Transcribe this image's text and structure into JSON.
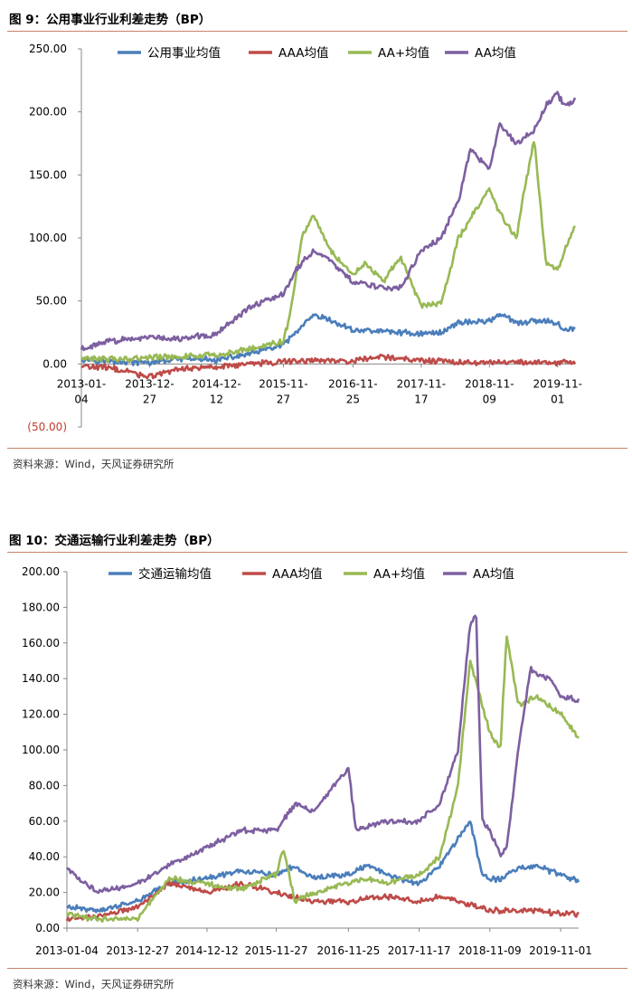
{
  "figures": [
    {
      "title": "图 9：公用事业行业利差走势（BP）",
      "source": "资料来源：Wind，天风证券研究所",
      "chart_data": {
        "type": "line",
        "ylim": [
          -50,
          250
        ],
        "yticks": [
          -50,
          0,
          50,
          100,
          150,
          200,
          250
        ],
        "ytick_labels": [
          "(50.00)",
          "0.00",
          "50.00",
          "100.00",
          "150.00",
          "200.00",
          "250.00"
        ],
        "x_start": "2013-01-04",
        "x_end": "2020-01-31",
        "xtick_labels": [
          "2013-01-04",
          "2013-12-27",
          "2014-12-12",
          "2015-11-27",
          "2016-11-25",
          "2017-11-17",
          "2018-11-09",
          "2019-11-01"
        ],
        "legend_position": "top",
        "grid": false,
        "series": [
          {
            "name": "公用事业均值",
            "color": "#4a7ebb",
            "points": [
              [
                "2013-01-04",
                4
              ],
              [
                "2013-06-01",
                2
              ],
              [
                "2013-12-27",
                1
              ],
              [
                "2014-06-01",
                4
              ],
              [
                "2014-12-12",
                3
              ],
              [
                "2015-06-01",
                8
              ],
              [
                "2015-11-27",
                15
              ],
              [
                "2016-02-01",
                25
              ],
              [
                "2016-05-01",
                38
              ],
              [
                "2016-07-01",
                36
              ],
              [
                "2016-11-25",
                27
              ],
              [
                "2017-05-01",
                26
              ],
              [
                "2017-11-17",
                24
              ],
              [
                "2018-03-01",
                25
              ],
              [
                "2018-06-01",
                33
              ],
              [
                "2018-11-09",
                34
              ],
              [
                "2019-01-01",
                40
              ],
              [
                "2019-04-01",
                32
              ],
              [
                "2019-07-01",
                34
              ],
              [
                "2019-11-01",
                33
              ],
              [
                "2019-12-01",
                27
              ],
              [
                "2020-01-31",
                28
              ]
            ]
          },
          {
            "name": "AAA均值",
            "color": "#be4b48",
            "points": [
              [
                "2013-01-04",
                -2
              ],
              [
                "2013-06-01",
                -3
              ],
              [
                "2013-12-27",
                -10
              ],
              [
                "2014-06-01",
                -4
              ],
              [
                "2014-12-12",
                -2
              ],
              [
                "2015-06-01",
                0
              ],
              [
                "2015-11-27",
                2
              ],
              [
                "2016-06-01",
                3
              ],
              [
                "2016-11-25",
                2
              ],
              [
                "2017-05-01",
                6
              ],
              [
                "2017-11-17",
                3
              ],
              [
                "2018-06-01",
                1
              ],
              [
                "2018-11-09",
                1
              ],
              [
                "2019-06-01",
                1
              ],
              [
                "2019-11-01",
                1
              ],
              [
                "2020-01-31",
                2
              ]
            ]
          },
          {
            "name": "AA+均值",
            "color": "#98b954",
            "points": [
              [
                "2013-01-04",
                4
              ],
              [
                "2013-06-01",
                4
              ],
              [
                "2013-12-27",
                5
              ],
              [
                "2014-06-01",
                6
              ],
              [
                "2014-12-12",
                7
              ],
              [
                "2015-06-01",
                12
              ],
              [
                "2015-11-27",
                18
              ],
              [
                "2016-01-01",
                40
              ],
              [
                "2016-03-01",
                100
              ],
              [
                "2016-05-01",
                118
              ],
              [
                "2016-08-01",
                90
              ],
              [
                "2016-11-25",
                70
              ],
              [
                "2017-02-01",
                80
              ],
              [
                "2017-05-01",
                65
              ],
              [
                "2017-08-01",
                85
              ],
              [
                "2017-11-17",
                46
              ],
              [
                "2018-03-01",
                48
              ],
              [
                "2018-06-01",
                100
              ],
              [
                "2018-11-09",
                140
              ],
              [
                "2019-01-01",
                120
              ],
              [
                "2019-04-01",
                100
              ],
              [
                "2019-05-01",
                130
              ],
              [
                "2019-07-01",
                178
              ],
              [
                "2019-09-01",
                80
              ],
              [
                "2019-11-01",
                75
              ],
              [
                "2020-01-31",
                110
              ]
            ]
          },
          {
            "name": "AA均值",
            "color": "#7d5fa0",
            "points": [
              [
                "2013-01-04",
                12
              ],
              [
                "2013-06-01",
                18
              ],
              [
                "2013-12-27",
                22
              ],
              [
                "2014-06-01",
                20
              ],
              [
                "2014-12-12",
                24
              ],
              [
                "2015-06-01",
                45
              ],
              [
                "2015-11-27",
                55
              ],
              [
                "2016-02-01",
                75
              ],
              [
                "2016-05-01",
                90
              ],
              [
                "2016-08-01",
                82
              ],
              [
                "2016-11-25",
                65
              ],
              [
                "2017-05-01",
                60
              ],
              [
                "2017-08-01",
                60
              ],
              [
                "2017-11-17",
                90
              ],
              [
                "2018-03-01",
                100
              ],
              [
                "2018-06-01",
                130
              ],
              [
                "2018-08-01",
                170
              ],
              [
                "2018-11-09",
                155
              ],
              [
                "2019-01-01",
                190
              ],
              [
                "2019-04-01",
                175
              ],
              [
                "2019-07-01",
                185
              ],
              [
                "2019-09-01",
                205
              ],
              [
                "2019-11-01",
                215
              ],
              [
                "2019-12-01",
                205
              ],
              [
                "2020-01-31",
                210
              ]
            ]
          }
        ]
      }
    },
    {
      "title": "图 10：交通运输行业利差走势（BP）",
      "source": "资料来源：Wind，天风证券研究所",
      "chart_data": {
        "type": "line",
        "ylim": [
          0,
          200
        ],
        "yticks": [
          0,
          20,
          40,
          60,
          80,
          100,
          120,
          140,
          160,
          180,
          200
        ],
        "ytick_labels": [
          "0.00",
          "20.00",
          "40.00",
          "60.00",
          "80.00",
          "100.00",
          "120.00",
          "140.00",
          "160.00",
          "180.00",
          "200.00"
        ],
        "x_start": "2013-01-04",
        "x_end": "2020-01-31",
        "xtick_labels": [
          "2013-01-04",
          "2013-12-27",
          "2014-12-12",
          "2015-11-27",
          "2016-11-25",
          "2017-11-17",
          "2018-11-09",
          "2019-11-01"
        ],
        "legend_position": "top",
        "grid": false,
        "series": [
          {
            "name": "交通运输均值",
            "color": "#4a7ebb",
            "points": [
              [
                "2013-01-04",
                12
              ],
              [
                "2013-06-01",
                10
              ],
              [
                "2013-12-27",
                15
              ],
              [
                "2014-06-01",
                25
              ],
              [
                "2014-12-12",
                28
              ],
              [
                "2015-06-01",
                32
              ],
              [
                "2015-11-27",
                30
              ],
              [
                "2016-03-01",
                35
              ],
              [
                "2016-06-01",
                28
              ],
              [
                "2016-11-25",
                30
              ],
              [
                "2017-03-01",
                35
              ],
              [
                "2017-06-01",
                30
              ],
              [
                "2017-11-17",
                25
              ],
              [
                "2018-03-01",
                35
              ],
              [
                "2018-06-01",
                50
              ],
              [
                "2018-08-01",
                60
              ],
              [
                "2018-10-01",
                30
              ],
              [
                "2018-11-09",
                28
              ],
              [
                "2019-01-01",
                27
              ],
              [
                "2019-04-01",
                34
              ],
              [
                "2019-07-01",
                35
              ],
              [
                "2019-11-01",
                30
              ],
              [
                "2020-01-31",
                26
              ]
            ]
          },
          {
            "name": "AAA均值",
            "color": "#be4b48",
            "points": [
              [
                "2013-01-04",
                5
              ],
              [
                "2013-06-01",
                6
              ],
              [
                "2013-12-27",
                12
              ],
              [
                "2014-06-01",
                25
              ],
              [
                "2014-12-12",
                20
              ],
              [
                "2015-06-01",
                25
              ],
              [
                "2015-11-27",
                20
              ],
              [
                "2016-06-01",
                15
              ],
              [
                "2016-11-25",
                15
              ],
              [
                "2017-06-01",
                18
              ],
              [
                "2017-11-17",
                15
              ],
              [
                "2018-03-01",
                18
              ],
              [
                "2018-06-01",
                15
              ],
              [
                "2018-11-09",
                10
              ],
              [
                "2019-06-01",
                10
              ],
              [
                "2019-11-01",
                8
              ],
              [
                "2020-01-31",
                8
              ]
            ]
          },
          {
            "name": "AA+均值",
            "color": "#98b954",
            "points": [
              [
                "2013-01-04",
                8
              ],
              [
                "2013-06-01",
                5
              ],
              [
                "2013-12-27",
                5
              ],
              [
                "2014-06-01",
                28
              ],
              [
                "2014-12-12",
                25
              ],
              [
                "2015-06-01",
                22
              ],
              [
                "2015-11-27",
                30
              ],
              [
                "2016-01-01",
                45
              ],
              [
                "2016-03-01",
                15
              ],
              [
                "2016-06-01",
                20
              ],
              [
                "2016-11-25",
                25
              ],
              [
                "2017-03-01",
                28
              ],
              [
                "2017-06-01",
                25
              ],
              [
                "2017-11-17",
                30
              ],
              [
                "2018-03-01",
                40
              ],
              [
                "2018-06-01",
                80
              ],
              [
                "2018-08-01",
                150
              ],
              [
                "2018-10-01",
                125
              ],
              [
                "2018-11-09",
                110
              ],
              [
                "2019-01-01",
                100
              ],
              [
                "2019-02-01",
                165
              ],
              [
                "2019-04-01",
                125
              ],
              [
                "2019-07-01",
                130
              ],
              [
                "2019-11-01",
                120
              ],
              [
                "2020-01-31",
                107
              ]
            ]
          },
          {
            "name": "AA均值",
            "color": "#7d5fa0",
            "points": [
              [
                "2013-01-04",
                34
              ],
              [
                "2013-06-01",
                20
              ],
              [
                "2013-12-27",
                25
              ],
              [
                "2014-06-01",
                35
              ],
              [
                "2014-12-12",
                45
              ],
              [
                "2015-06-01",
                55
              ],
              [
                "2015-11-27",
                55
              ],
              [
                "2016-03-01",
                70
              ],
              [
                "2016-06-01",
                65
              ],
              [
                "2016-11-25",
                90
              ],
              [
                "2017-01-01",
                55
              ],
              [
                "2017-06-01",
                60
              ],
              [
                "2017-11-17",
                60
              ],
              [
                "2018-03-01",
                70
              ],
              [
                "2018-06-01",
                100
              ],
              [
                "2018-08-01",
                170
              ],
              [
                "2018-09-01",
                175
              ],
              [
                "2018-10-01",
                60
              ],
              [
                "2018-11-09",
                55
              ],
              [
                "2019-01-01",
                40
              ],
              [
                "2019-02-01",
                45
              ],
              [
                "2019-04-01",
                100
              ],
              [
                "2019-06-01",
                145
              ],
              [
                "2019-09-01",
                140
              ],
              [
                "2019-11-01",
                130
              ],
              [
                "2020-01-31",
                128
              ]
            ]
          }
        ]
      }
    }
  ]
}
